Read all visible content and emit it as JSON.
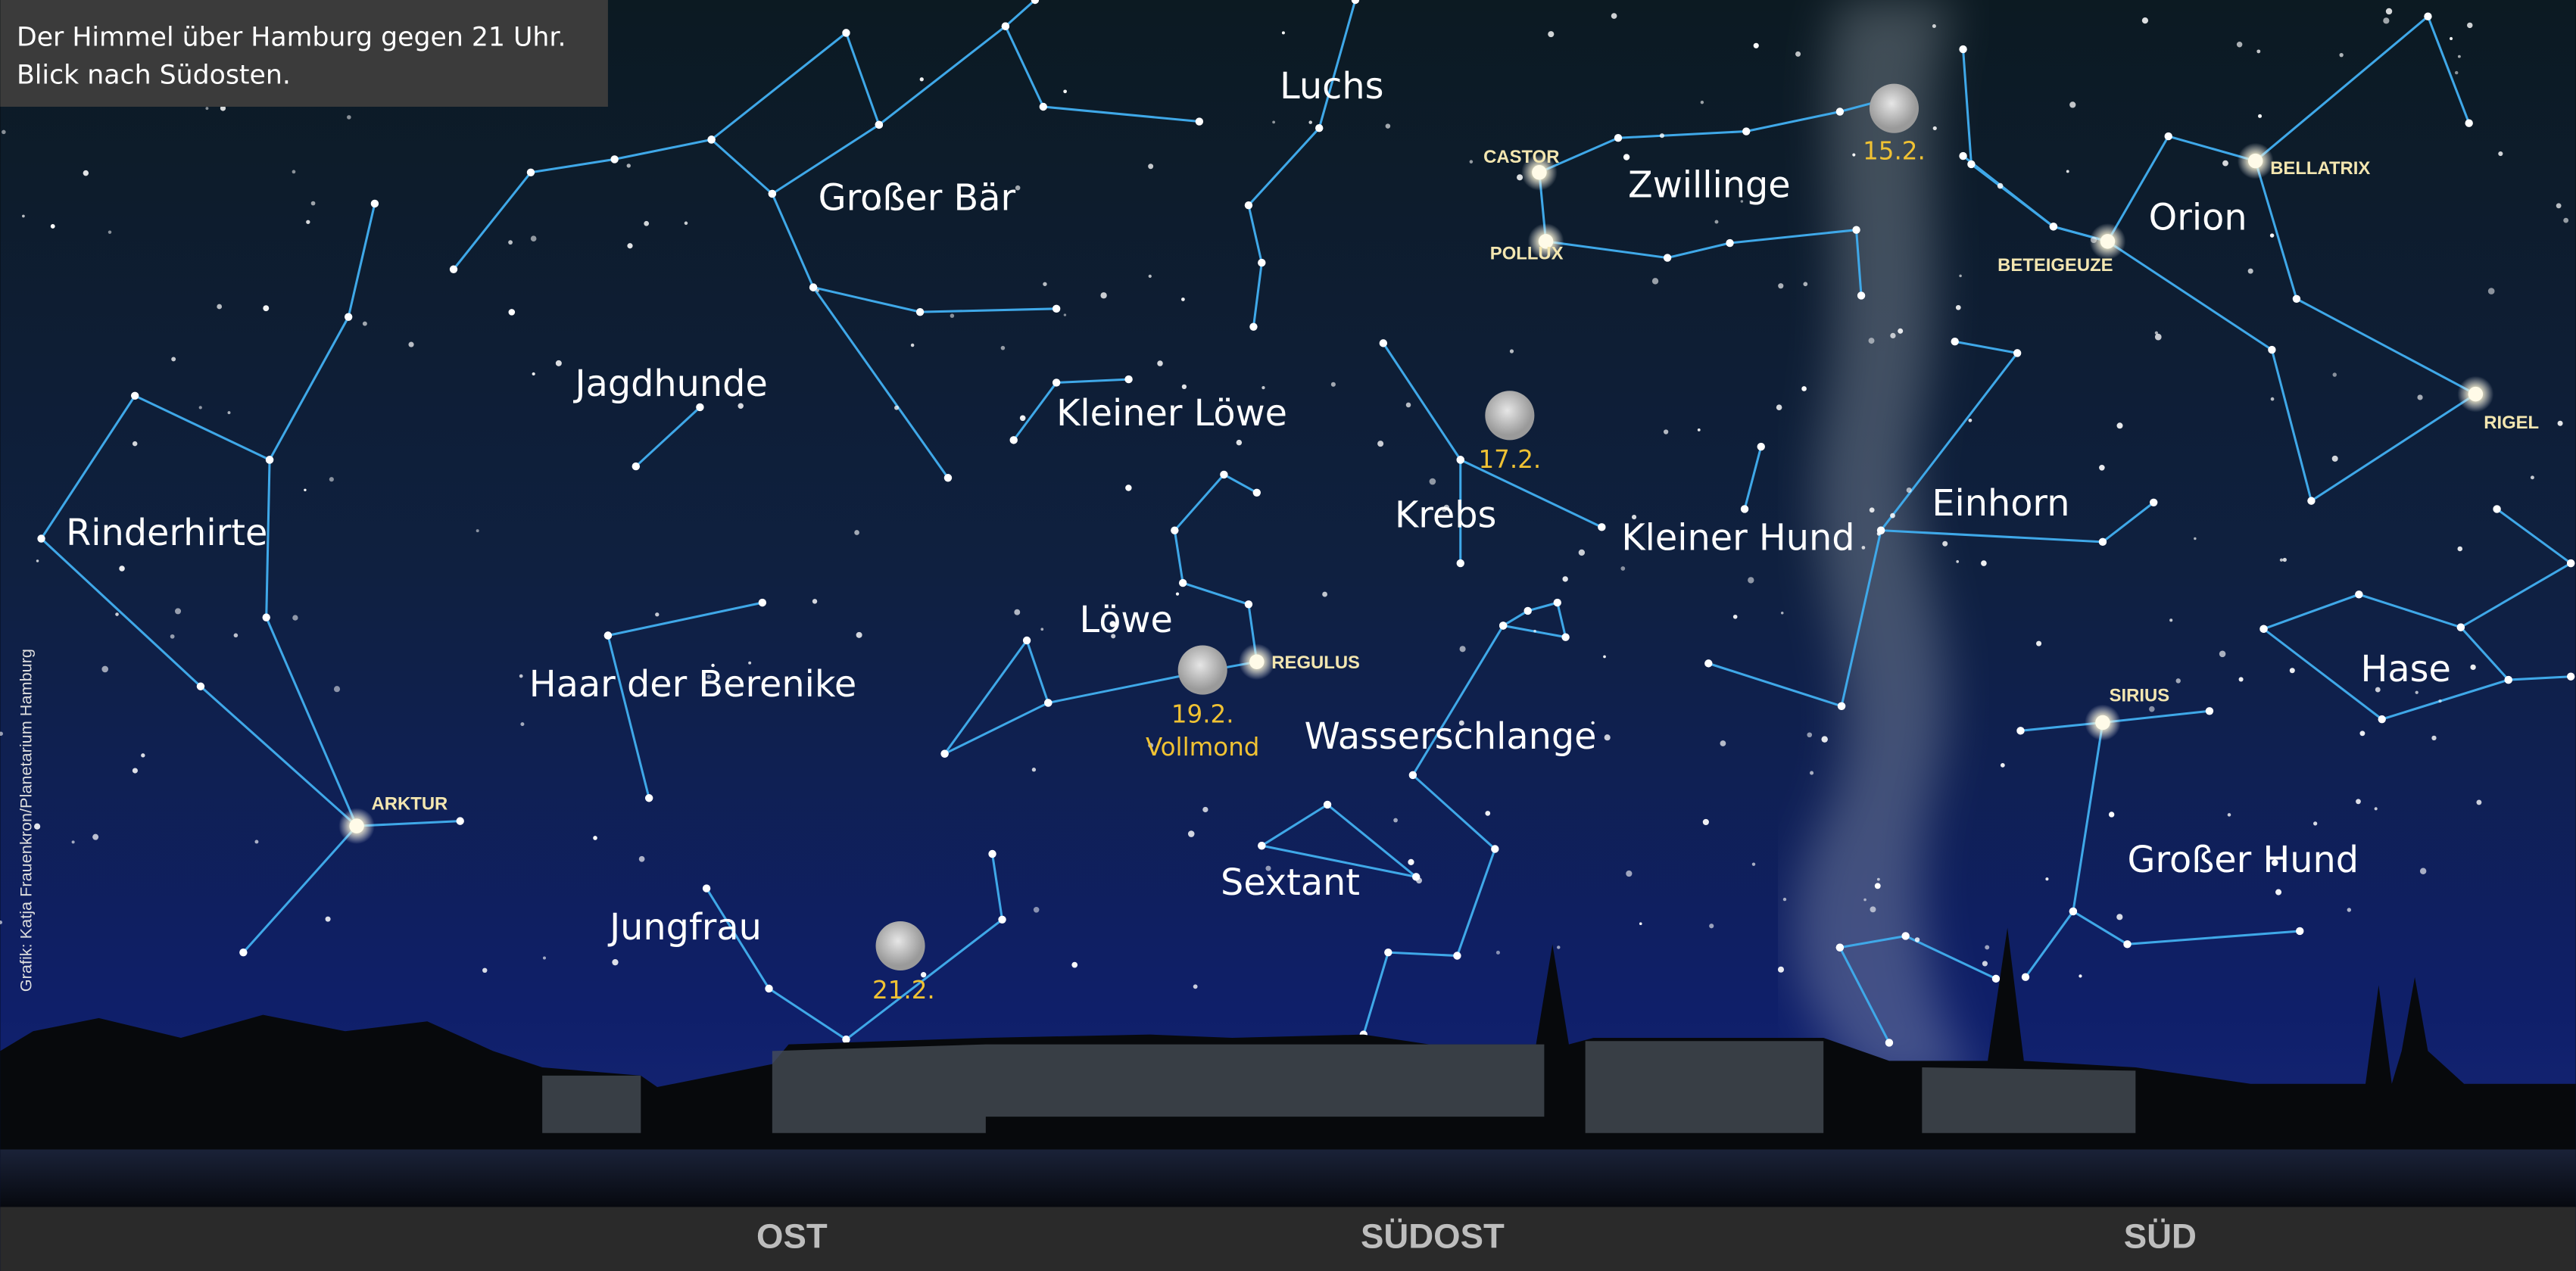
{
  "caption": {
    "lines": [
      "Der Himmel über Hamburg gegen 21 Uhr.",
      "Blick nach Südosten."
    ]
  },
  "constellations": [
    "Luchs",
    "Großer Bär",
    "Zwillinge",
    "Orion",
    "Jagdhunde",
    "Kleiner Löwe",
    "Rinderhirte",
    "Krebs",
    "Kleiner Hund",
    "Einhorn",
    "Löwe",
    "Haar der Berenike",
    "Wasserschlange",
    "Hase",
    "Großer Hund",
    "Sextant",
    "Jungfrau"
  ],
  "stars": [
    "CASTOR",
    "POLLUX",
    "BELLATRIX",
    "BETEIGEUZE",
    "RIGEL",
    "REGULUS",
    "SIRIUS",
    "ARKTUR"
  ],
  "moon_phases": [
    {
      "date": "15.2."
    },
    {
      "date": "17.2."
    },
    {
      "date": "19.2.",
      "note": "Vollmond"
    },
    {
      "date": "21.2."
    }
  ],
  "directions": [
    "OST",
    "SÜDOST",
    "SÜD"
  ],
  "credit": "Grafik: Katja Frauenkron/Planetarium Hamburg"
}
